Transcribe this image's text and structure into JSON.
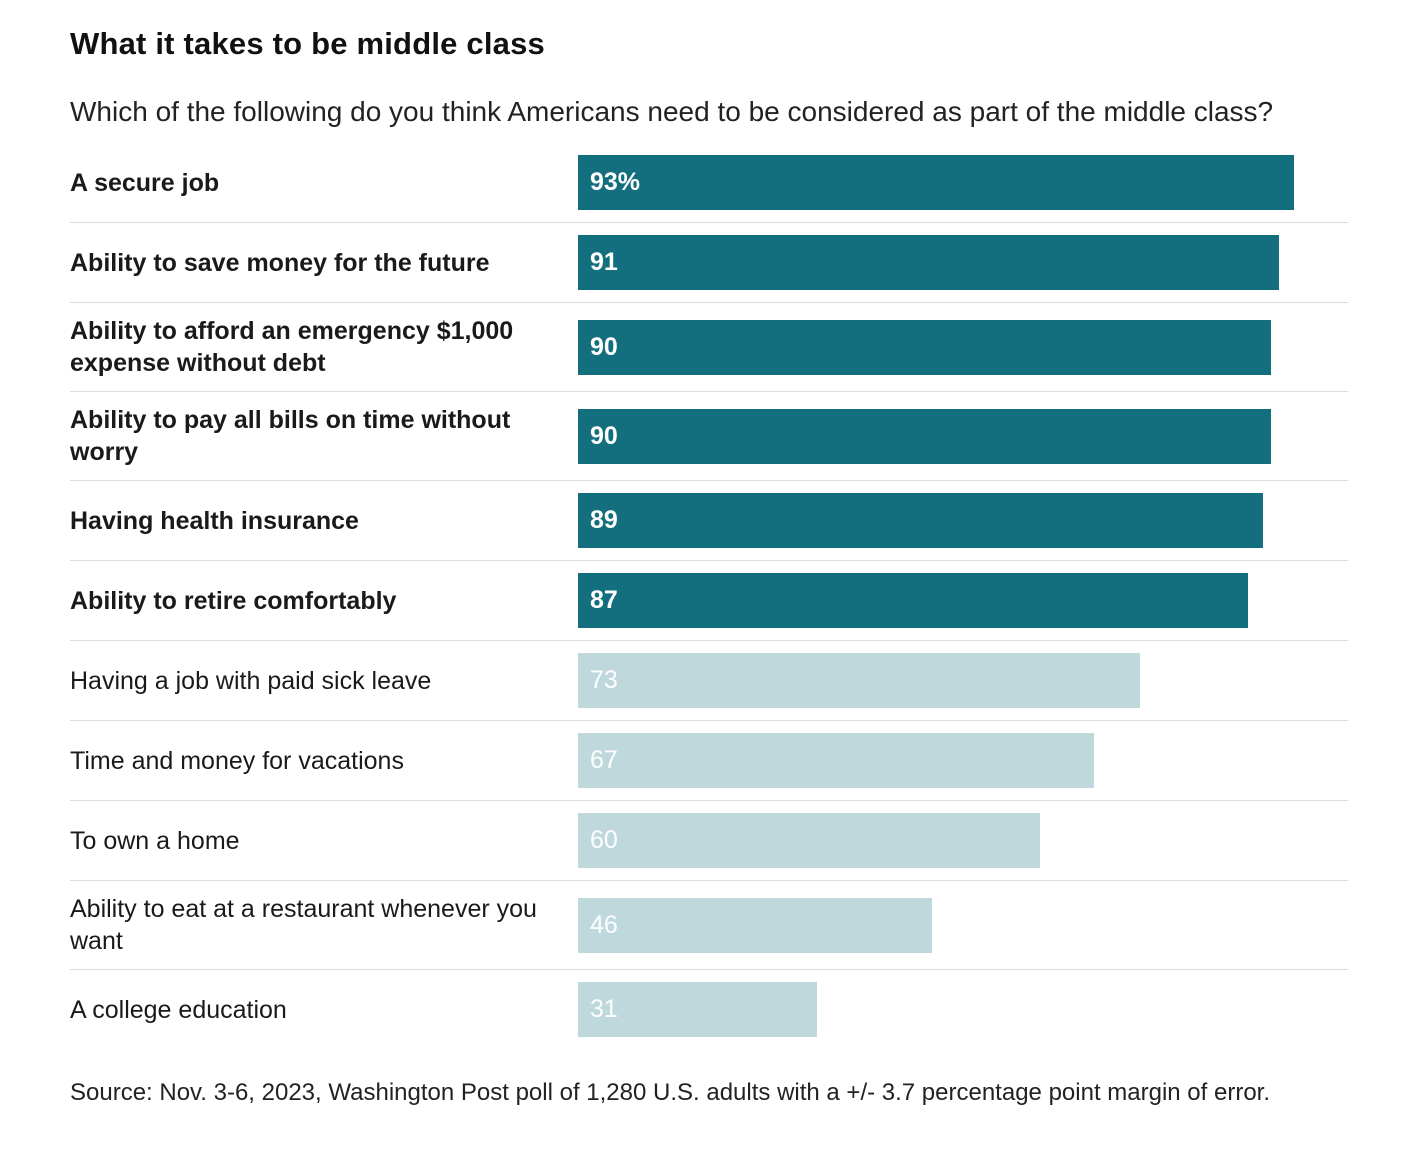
{
  "header": {
    "title": "What it takes to be middle class",
    "subtitle": "Which of the following do you think Americans need to be considered as part of the middle class?"
  },
  "chart_data": {
    "type": "bar",
    "orientation": "horizontal",
    "title": "What it takes to be middle class",
    "subtitle": "Which of the following do you think Americans need to be considered as part of the middle class?",
    "xlabel": "",
    "ylabel": "",
    "xlim": [
      0,
      100
    ],
    "grid": false,
    "legend": false,
    "categories": [
      "A secure job",
      "Ability to save money for the future",
      "Ability to afford an emergency $1,000 expense without debt",
      "Ability to pay all bills on time without worry",
      "Having health insurance",
      "Ability to retire comfortably",
      "Having a job with paid sick leave",
      "Time and money for vacations",
      "To own a home",
      "Ability to eat at a restaurant whenever you want",
      "A college education"
    ],
    "values": [
      93,
      91,
      90,
      90,
      89,
      87,
      73,
      67,
      60,
      46,
      31
    ],
    "value_labels": [
      "93%",
      "91",
      "90",
      "90",
      "89",
      "87",
      "73",
      "67",
      "60",
      "46",
      "31"
    ],
    "emphasized": [
      true,
      true,
      true,
      true,
      true,
      true,
      false,
      false,
      false,
      false,
      false
    ],
    "colors": {
      "emphasis_bar": "#136e7e",
      "muted_bar": "#bed8dc",
      "bar_value_text": "#ffffff",
      "separator": "#dcdcdc",
      "text": "#1a1a1a"
    }
  },
  "footer": {
    "source": "Source: Nov. 3-6, 2023, Washington Post poll of 1,280 U.S. adults with a +/- 3.7 percentage point margin of error."
  }
}
